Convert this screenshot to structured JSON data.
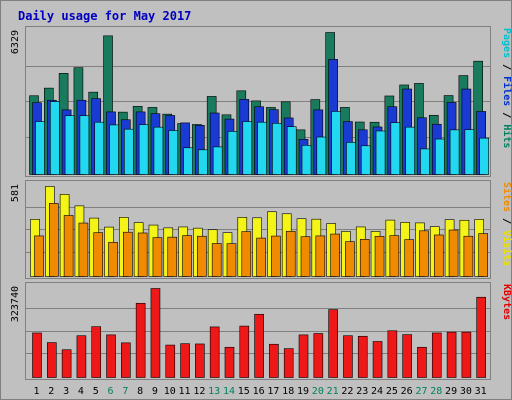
{
  "chart_data": {
    "type": "bar",
    "title": "Daily usage for May 2017",
    "categories": [
      "1",
      "2",
      "3",
      "4",
      "5",
      "6",
      "7",
      "8",
      "9",
      "10",
      "11",
      "12",
      "13",
      "14",
      "15",
      "16",
      "17",
      "18",
      "19",
      "20",
      "21",
      "22",
      "23",
      "24",
      "25",
      "26",
      "27",
      "28",
      "29",
      "30",
      "31"
    ],
    "weekend_days": [
      "6",
      "7",
      "13",
      "14",
      "20",
      "21",
      "27",
      "28"
    ],
    "panels": [
      {
        "id": "top",
        "ymax": 6329,
        "ymax_label": "6329",
        "right_label": [
          "Pages",
          "/",
          "Files",
          "/",
          "Hits"
        ],
        "right_label_colors": [
          "#00c0d0",
          "#000000",
          "#0030d0",
          "#000000",
          "#008060"
        ],
        "series": [
          {
            "name": "Hits",
            "color": "#1a7a5e",
            "values": [
              3510,
              3850,
              4510,
              4760,
              3670,
              6180,
              2780,
              3040,
              2990,
              2690,
              2270,
              2230,
              3480,
              2660,
              3730,
              3280,
              2990,
              3240,
              1990,
              3340,
              6329,
              2990,
              2340,
              2330,
              3500,
              3990,
              4060,
              2640,
              3520,
              4410,
              5050
            ]
          },
          {
            "name": "Files",
            "color": "#1a3ad4",
            "values": [
              3200,
              3310,
              2880,
              3310,
              3380,
              2790,
              2440,
              2790,
              2710,
              2630,
              2300,
              2190,
              2740,
              2470,
              3350,
              3020,
              2890,
              2520,
              1570,
              2880,
              5130,
              2360,
              1990,
              2120,
              3020,
              3810,
              2530,
              2240,
              3210,
              3810,
              2810
            ]
          },
          {
            "name": "Pages",
            "color": "#22d8f0",
            "values": [
              2360,
              3250,
              2620,
              2620,
              2330,
              2210,
              2020,
              2220,
              2110,
              1960,
              1190,
              1100,
              1230,
              1920,
              2360,
              2330,
              2280,
              2130,
              1300,
              1670,
              2810,
              1430,
              1280,
              1940,
              2310,
              2110,
              1140,
              1580,
              1990,
              2000,
              1620
            ]
          }
        ]
      },
      {
        "id": "middle",
        "ymax": 581,
        "ymax_label": "581",
        "right_label": [
          "Sites",
          "/",
          "Visits"
        ],
        "right_label_colors": [
          "#f08a00",
          "#000000",
          "#e8e000"
        ],
        "series": [
          {
            "name": "Visits",
            "color": "#f4f418",
            "values": [
              369,
              581,
              530,
              456,
              377,
              319,
              382,
              348,
              332,
              314,
              320,
              312,
              302,
              283,
              382,
              379,
              418,
              405,
              373,
              370,
              342,
              291,
              320,
              291,
              364,
              349,
              346,
              322,
              367,
              363,
              368
            ]
          },
          {
            "name": "Sites",
            "color": "#f08a00",
            "values": [
              262,
              472,
              394,
              345,
              283,
              220,
              286,
              281,
              251,
              254,
              264,
              260,
              213,
              212,
              290,
              248,
              261,
              292,
              257,
              262,
              274,
              225,
              240,
              259,
              264,
              238,
              295,
              268,
              300,
              260,
              277
            ]
          }
        ]
      },
      {
        "id": "bottom",
        "ymax": 323740,
        "ymax_label": "323740",
        "right_label": [
          "KBytes"
        ],
        "right_label_colors": [
          "#e00000"
        ],
        "series": [
          {
            "name": "KBytes",
            "color": "#ee1818",
            "values": [
              162000,
              127000,
              101000,
              152000,
              185000,
              155000,
              126000,
              270000,
              323740,
              118000,
              123000,
              122000,
              184000,
              110000,
              187000,
              230000,
              121000,
              105000,
              155000,
              160000,
              247000,
              152000,
              150000,
              131000,
              170000,
              156000,
              110000,
              162000,
              165000,
              165000,
              292000
            ]
          }
        ]
      }
    ]
  }
}
